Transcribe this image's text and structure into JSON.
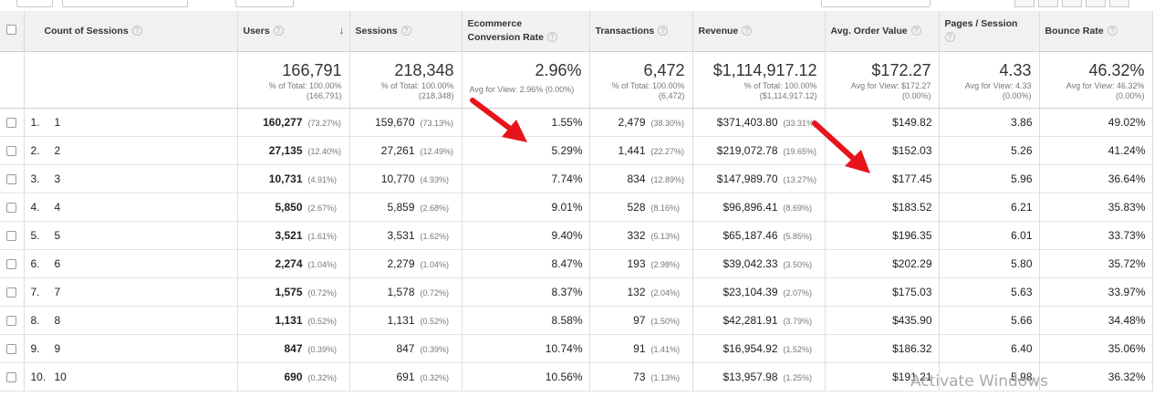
{
  "table": {
    "headers": {
      "dimension": "Count of Sessions",
      "users": "Users",
      "sessions": "Sessions",
      "conversion": "Ecommerce Conversion Rate",
      "transactions": "Transactions",
      "revenue": "Revenue",
      "aov": "Avg. Order Value",
      "pps": "Pages / Session",
      "bounce": "Bounce Rate"
    },
    "totals": {
      "users": {
        "value": "166,791",
        "sub1": "% of Total: 100.00%",
        "sub2": "(166,791)"
      },
      "sessions": {
        "value": "218,348",
        "sub1": "% of Total: 100.00%",
        "sub2": "(218,348)"
      },
      "conversion": {
        "value": "2.96%",
        "sub1": "Avg for View: 2.96% (0.00%)",
        "sub2": ""
      },
      "transactions": {
        "value": "6,472",
        "sub1": "% of Total: 100.00%",
        "sub2": "(6,472)"
      },
      "revenue": {
        "value": "$1,114,917.12",
        "sub1": "% of Total: 100.00%",
        "sub2": "($1,114,917.12)"
      },
      "aov": {
        "value": "$172.27",
        "sub1": "Avg for View: $172.27",
        "sub2": "(0.00%)"
      },
      "pps": {
        "value": "4.33",
        "sub1": "Avg for View: 4.33",
        "sub2": "(0.00%)"
      },
      "bounce": {
        "value": "46.32%",
        "sub1": "Avg for View: 46.32%",
        "sub2": "(0.00%)"
      }
    },
    "rows": [
      {
        "index": "1.",
        "dim": "1",
        "users": "160,277",
        "users_pct": "(73.27%)",
        "sessions": "159,670",
        "sessions_pct": "(73.13%)",
        "conversion": "1.55%",
        "transactions": "2,479",
        "transactions_pct": "(38.30%)",
        "revenue": "$371,403.80",
        "revenue_pct": "(33.31%)",
        "aov": "$149.82",
        "pps": "3.86",
        "bounce": "49.02%"
      },
      {
        "index": "2.",
        "dim": "2",
        "users": "27,135",
        "users_pct": "(12.40%)",
        "sessions": "27,261",
        "sessions_pct": "(12.49%)",
        "conversion": "5.29%",
        "transactions": "1,441",
        "transactions_pct": "(22.27%)",
        "revenue": "$219,072.78",
        "revenue_pct": "(19.65%)",
        "aov": "$152.03",
        "pps": "5.26",
        "bounce": "41.24%"
      },
      {
        "index": "3.",
        "dim": "3",
        "users": "10,731",
        "users_pct": "(4.91%)",
        "sessions": "10,770",
        "sessions_pct": "(4.93%)",
        "conversion": "7.74%",
        "transactions": "834",
        "transactions_pct": "(12.89%)",
        "revenue": "$147,989.70",
        "revenue_pct": "(13.27%)",
        "aov": "$177.45",
        "pps": "5.96",
        "bounce": "36.64%"
      },
      {
        "index": "4.",
        "dim": "4",
        "users": "5,850",
        "users_pct": "(2.67%)",
        "sessions": "5,859",
        "sessions_pct": "(2.68%)",
        "conversion": "9.01%",
        "transactions": "528",
        "transactions_pct": "(8.16%)",
        "revenue": "$96,896.41",
        "revenue_pct": "(8.69%)",
        "aov": "$183.52",
        "pps": "6.21",
        "bounce": "35.83%"
      },
      {
        "index": "5.",
        "dim": "5",
        "users": "3,521",
        "users_pct": "(1.61%)",
        "sessions": "3,531",
        "sessions_pct": "(1.62%)",
        "conversion": "9.40%",
        "transactions": "332",
        "transactions_pct": "(5.13%)",
        "revenue": "$65,187.46",
        "revenue_pct": "(5.85%)",
        "aov": "$196.35",
        "pps": "6.01",
        "bounce": "33.73%"
      },
      {
        "index": "6.",
        "dim": "6",
        "users": "2,274",
        "users_pct": "(1.04%)",
        "sessions": "2,279",
        "sessions_pct": "(1.04%)",
        "conversion": "8.47%",
        "transactions": "193",
        "transactions_pct": "(2.98%)",
        "revenue": "$39,042.33",
        "revenue_pct": "(3.50%)",
        "aov": "$202.29",
        "pps": "5.80",
        "bounce": "35.72%"
      },
      {
        "index": "7.",
        "dim": "7",
        "users": "1,575",
        "users_pct": "(0.72%)",
        "sessions": "1,578",
        "sessions_pct": "(0.72%)",
        "conversion": "8.37%",
        "transactions": "132",
        "transactions_pct": "(2.04%)",
        "revenue": "$23,104.39",
        "revenue_pct": "(2.07%)",
        "aov": "$175.03",
        "pps": "5.63",
        "bounce": "33.97%"
      },
      {
        "index": "8.",
        "dim": "8",
        "users": "1,131",
        "users_pct": "(0.52%)",
        "sessions": "1,131",
        "sessions_pct": "(0.52%)",
        "conversion": "8.58%",
        "transactions": "97",
        "transactions_pct": "(1.50%)",
        "revenue": "$42,281.91",
        "revenue_pct": "(3.79%)",
        "aov": "$435.90",
        "pps": "5.66",
        "bounce": "34.48%"
      },
      {
        "index": "9.",
        "dim": "9",
        "users": "847",
        "users_pct": "(0.39%)",
        "sessions": "847",
        "sessions_pct": "(0.39%)",
        "conversion": "10.74%",
        "transactions": "91",
        "transactions_pct": "(1.41%)",
        "revenue": "$16,954.92",
        "revenue_pct": "(1.52%)",
        "aov": "$186.32",
        "pps": "6.40",
        "bounce": "35.06%"
      },
      {
        "index": "10.",
        "dim": "10",
        "users": "690",
        "users_pct": "(0.32%)",
        "sessions": "691",
        "sessions_pct": "(0.32%)",
        "conversion": "10.56%",
        "transactions": "73",
        "transactions_pct": "(1.13%)",
        "revenue": "$13,957.98",
        "revenue_pct": "(1.25%)",
        "aov": "$191.21",
        "pps": "5.98",
        "bounce": "36.32%"
      }
    ]
  },
  "overlay": {
    "watermark": "Activate Windows",
    "annotation_arrow_color": "#e8141b"
  },
  "icons": {
    "help": "help-circle-icon",
    "sort": "sort-down-arrow-icon",
    "checkbox": "checkbox-icon"
  }
}
